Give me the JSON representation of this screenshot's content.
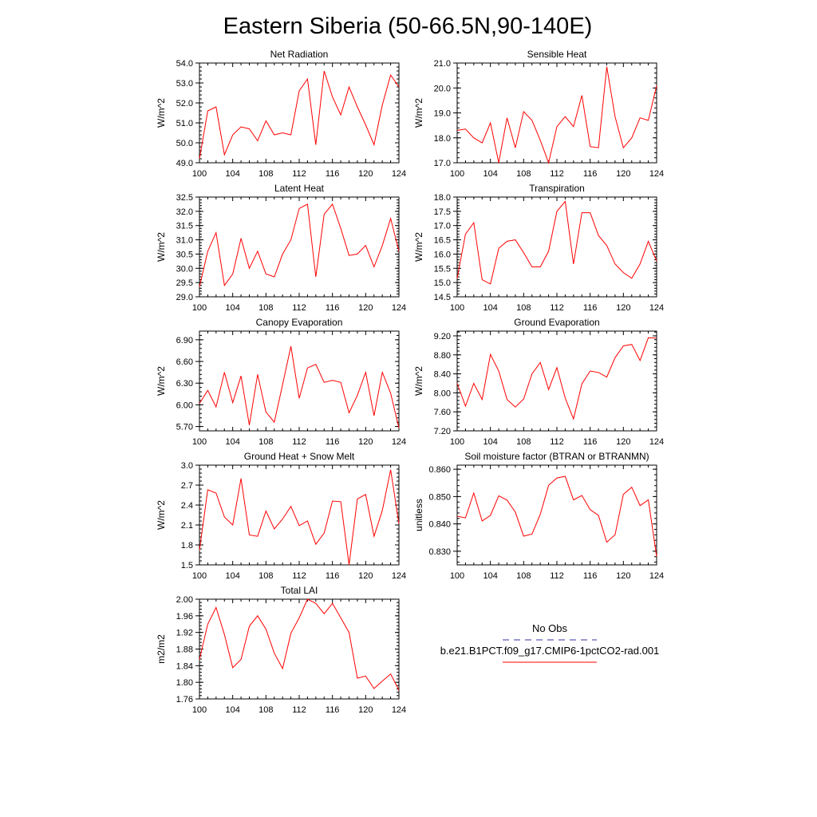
{
  "page": {
    "title": "Eastern Siberia (50-66.5N,90-140E)"
  },
  "legend": {
    "entries": [
      {
        "label": "No Obs",
        "color": "#3333aa",
        "dash": true
      },
      {
        "label": "b.e21.B1PCT.f09_g17.CMIP6-1pctCO2-rad.001",
        "color": "#ff0000",
        "dash": false
      }
    ]
  },
  "chart_data": [
    {
      "type": "line",
      "title": "Net Radiation",
      "ylabel": "W/m^2",
      "xlim": [
        100,
        124
      ],
      "ylim": [
        49,
        54
      ],
      "xticks": [
        100,
        104,
        108,
        112,
        116,
        120,
        124
      ],
      "xticklabels": [
        "100",
        "104",
        "108",
        "112",
        "116",
        "120",
        "124"
      ],
      "yticks": [
        49,
        50,
        51,
        52,
        53,
        54
      ],
      "yticklabels": [
        "49.0",
        "50.0",
        "51.0",
        "52.0",
        "53.0",
        "54.0"
      ],
      "series": [
        {
          "color": "#ff0000",
          "x": [
            100,
            101,
            102,
            103,
            104,
            105,
            106,
            107,
            108,
            109,
            110,
            111,
            112,
            113,
            114,
            115,
            116,
            117,
            118,
            119,
            120,
            121,
            122,
            123,
            124
          ],
          "y": [
            49.2,
            51.6,
            51.8,
            49.4,
            50.4,
            50.8,
            50.7,
            50.1,
            51.1,
            50.4,
            50.5,
            50.4,
            52.6,
            53.2,
            49.9,
            53.6,
            52.3,
            51.4,
            52.8,
            51.8,
            50.9,
            49.9,
            51.9,
            53.4,
            52.8
          ]
        }
      ]
    },
    {
      "type": "line",
      "title": "Sensible Heat",
      "ylabel": "W/m^2",
      "xlim": [
        100,
        124
      ],
      "ylim": [
        17,
        21
      ],
      "xticks": [
        100,
        104,
        108,
        112,
        116,
        120,
        124
      ],
      "xticklabels": [
        "100",
        "104",
        "108",
        "112",
        "116",
        "120",
        "124"
      ],
      "yticks": [
        17,
        18,
        19,
        20,
        21
      ],
      "yticklabels": [
        "17.0",
        "18.0",
        "19.0",
        "20.0",
        "21.0"
      ],
      "series": [
        {
          "color": "#ff0000",
          "x": [
            100,
            101,
            102,
            103,
            104,
            105,
            106,
            107,
            108,
            109,
            110,
            111,
            112,
            113,
            114,
            115,
            116,
            117,
            118,
            119,
            120,
            121,
            122,
            123,
            124
          ],
          "y": [
            18.3,
            18.35,
            18.0,
            17.8,
            18.6,
            17.0,
            18.8,
            17.6,
            19.05,
            18.7,
            17.9,
            17.0,
            18.45,
            18.85,
            18.45,
            19.7,
            17.65,
            17.6,
            20.85,
            18.85,
            17.6,
            18.0,
            18.8,
            18.7,
            20.1
          ]
        }
      ]
    },
    {
      "type": "line",
      "title": "Latent Heat",
      "ylabel": "W/m^2",
      "xlim": [
        100,
        124
      ],
      "ylim": [
        29,
        32.5
      ],
      "xticks": [
        100,
        104,
        108,
        112,
        116,
        120,
        124
      ],
      "xticklabels": [
        "100",
        "104",
        "108",
        "112",
        "116",
        "120",
        "124"
      ],
      "yticks": [
        29,
        29.5,
        30,
        30.5,
        31,
        31.5,
        32,
        32.5
      ],
      "yticklabels": [
        "29.0",
        "29.5",
        "30.0",
        "30.5",
        "31.0",
        "31.5",
        "32.0",
        "32.5"
      ],
      "series": [
        {
          "color": "#ff0000",
          "x": [
            100,
            101,
            102,
            103,
            104,
            105,
            106,
            107,
            108,
            109,
            110,
            111,
            112,
            113,
            114,
            115,
            116,
            117,
            118,
            119,
            120,
            121,
            122,
            123,
            124
          ],
          "y": [
            29.35,
            30.6,
            31.25,
            29.4,
            29.8,
            31.05,
            30.0,
            30.6,
            29.8,
            29.7,
            30.5,
            31.0,
            32.1,
            32.25,
            29.7,
            31.9,
            32.25,
            31.4,
            30.45,
            30.5,
            30.8,
            30.05,
            30.8,
            31.75,
            30.6
          ]
        }
      ]
    },
    {
      "type": "line",
      "title": "Transpiration",
      "ylabel": "W/m^2",
      "xlim": [
        100,
        124
      ],
      "ylim": [
        14.5,
        18
      ],
      "xticks": [
        100,
        104,
        108,
        112,
        116,
        120,
        124
      ],
      "xticklabels": [
        "100",
        "104",
        "108",
        "112",
        "116",
        "120",
        "124"
      ],
      "yticks": [
        14.5,
        15,
        15.5,
        16,
        16.5,
        17,
        17.5,
        18
      ],
      "yticklabels": [
        "14.5",
        "15.0",
        "15.5",
        "16.0",
        "16.5",
        "17.0",
        "17.5",
        "18.0"
      ],
      "series": [
        {
          "color": "#ff0000",
          "x": [
            100,
            101,
            102,
            103,
            104,
            105,
            106,
            107,
            108,
            109,
            110,
            111,
            112,
            113,
            114,
            115,
            116,
            117,
            118,
            119,
            120,
            121,
            122,
            123,
            124
          ],
          "y": [
            15.15,
            16.7,
            17.1,
            15.1,
            14.95,
            16.2,
            16.45,
            16.5,
            16.05,
            15.55,
            15.55,
            16.1,
            17.5,
            17.85,
            15.65,
            17.45,
            17.45,
            16.65,
            16.3,
            15.65,
            15.35,
            15.15,
            15.65,
            16.45,
            15.75
          ]
        }
      ]
    },
    {
      "type": "line",
      "title": "Canopy Evaporation",
      "ylabel": "W/m^2",
      "xlim": [
        100,
        124
      ],
      "ylim": [
        5.64,
        7.02
      ],
      "xticks": [
        100,
        104,
        108,
        112,
        116,
        120,
        124
      ],
      "xticklabels": [
        "100",
        "104",
        "108",
        "112",
        "116",
        "120",
        "124"
      ],
      "yticks": [
        5.7,
        6.0,
        6.3,
        6.6,
        6.9
      ],
      "yticklabels": [
        "5.70",
        "6.00",
        "6.30",
        "6.60",
        "6.90"
      ],
      "series": [
        {
          "color": "#ff0000",
          "x": [
            100,
            101,
            102,
            103,
            104,
            105,
            106,
            107,
            108,
            109,
            110,
            111,
            112,
            113,
            114,
            115,
            116,
            117,
            118,
            119,
            120,
            121,
            122,
            123,
            124
          ],
          "y": [
            6.02,
            6.2,
            5.97,
            6.45,
            6.03,
            6.4,
            5.72,
            6.42,
            5.9,
            5.76,
            6.28,
            6.81,
            6.09,
            6.51,
            6.56,
            6.31,
            6.34,
            6.31,
            5.89,
            6.13,
            6.45,
            5.85,
            6.45,
            6.16,
            5.68
          ]
        }
      ]
    },
    {
      "type": "line",
      "title": "Ground Evaporation",
      "ylabel": "W/m^2",
      "xlim": [
        100,
        124
      ],
      "ylim": [
        7.2,
        9.3
      ],
      "xticks": [
        100,
        104,
        108,
        112,
        116,
        120,
        124
      ],
      "xticklabels": [
        "100",
        "104",
        "108",
        "112",
        "116",
        "120",
        "124"
      ],
      "yticks": [
        7.2,
        7.6,
        8.0,
        8.4,
        8.8,
        9.2
      ],
      "yticklabels": [
        "7.20",
        "7.60",
        "8.00",
        "8.40",
        "8.80",
        "9.20"
      ],
      "series": [
        {
          "color": "#ff0000",
          "x": [
            100,
            101,
            102,
            103,
            104,
            105,
            106,
            107,
            108,
            109,
            110,
            111,
            112,
            113,
            114,
            115,
            116,
            117,
            118,
            119,
            120,
            121,
            122,
            123,
            124
          ],
          "y": [
            8.2,
            7.72,
            8.2,
            7.86,
            8.81,
            8.46,
            7.86,
            7.7,
            7.87,
            8.4,
            8.64,
            8.07,
            8.53,
            7.89,
            7.45,
            8.19,
            8.46,
            8.43,
            8.33,
            8.74,
            8.99,
            9.02,
            8.68,
            9.16,
            9.15
          ]
        }
      ]
    },
    {
      "type": "line",
      "title": "Ground Heat + Snow Melt",
      "ylabel": "W/m^2",
      "xlim": [
        100,
        124
      ],
      "ylim": [
        1.5,
        3.0
      ],
      "xticks": [
        100,
        104,
        108,
        112,
        116,
        120,
        124
      ],
      "xticklabels": [
        "100",
        "104",
        "108",
        "112",
        "116",
        "120",
        "124"
      ],
      "yticks": [
        1.5,
        1.8,
        2.1,
        2.4,
        2.7,
        3.0
      ],
      "yticklabels": [
        "1.5",
        "1.8",
        "2.1",
        "2.4",
        "2.7",
        "3.0"
      ],
      "series": [
        {
          "color": "#ff0000",
          "x": [
            100,
            101,
            102,
            103,
            104,
            105,
            106,
            107,
            108,
            109,
            110,
            111,
            112,
            113,
            114,
            115,
            116,
            117,
            118,
            119,
            120,
            121,
            122,
            123,
            124
          ],
          "y": [
            1.72,
            2.63,
            2.58,
            2.22,
            2.1,
            2.8,
            1.95,
            1.93,
            2.31,
            2.04,
            2.19,
            2.38,
            2.09,
            2.16,
            1.81,
            1.98,
            2.46,
            2.45,
            1.5,
            2.49,
            2.56,
            1.93,
            2.32,
            2.93,
            2.12
          ]
        }
      ]
    },
    {
      "type": "line",
      "title": "Soil moisture factor (BTRAN or BTRANMN)",
      "ylabel": "unitless",
      "xlim": [
        100,
        124
      ],
      "ylim": [
        0.825,
        0.8615
      ],
      "xticks": [
        100,
        104,
        108,
        112,
        116,
        120,
        124
      ],
      "xticklabels": [
        "100",
        "104",
        "108",
        "112",
        "116",
        "120",
        "124"
      ],
      "yticks": [
        0.83,
        0.84,
        0.85,
        0.86
      ],
      "yticklabels": [
        "0.830",
        "0.840",
        "0.850",
        "0.860"
      ],
      "series": [
        {
          "color": "#ff0000",
          "x": [
            100,
            101,
            102,
            103,
            104,
            105,
            106,
            107,
            108,
            109,
            110,
            111,
            112,
            113,
            114,
            115,
            116,
            117,
            118,
            119,
            120,
            121,
            122,
            123,
            124
          ],
          "y": [
            0.8428,
            0.8422,
            0.8513,
            0.8411,
            0.8431,
            0.8503,
            0.8487,
            0.8443,
            0.8355,
            0.8363,
            0.8435,
            0.8541,
            0.8568,
            0.8574,
            0.8488,
            0.8504,
            0.8452,
            0.8431,
            0.8333,
            0.836,
            0.8508,
            0.8534,
            0.8467,
            0.8488,
            0.828
          ]
        }
      ]
    },
    {
      "type": "line",
      "title": "Total LAI",
      "ylabel": "m2/m2",
      "xlim": [
        100,
        124
      ],
      "ylim": [
        1.76,
        2.0
      ],
      "xticks": [
        100,
        104,
        108,
        112,
        116,
        120,
        124
      ],
      "xticklabels": [
        "100",
        "104",
        "108",
        "112",
        "116",
        "120",
        "124"
      ],
      "yticks": [
        1.76,
        1.8,
        1.84,
        1.88,
        1.92,
        1.96,
        2.0
      ],
      "yticklabels": [
        "1.76",
        "1.80",
        "1.84",
        "1.88",
        "1.92",
        "1.96",
        "2.00"
      ],
      "series": [
        {
          "color": "#ff0000",
          "x": [
            100,
            101,
            102,
            103,
            104,
            105,
            106,
            107,
            108,
            109,
            110,
            111,
            112,
            113,
            114,
            115,
            116,
            117,
            118,
            119,
            120,
            121,
            122,
            123,
            124
          ],
          "y": [
            1.855,
            1.94,
            1.98,
            1.915,
            1.835,
            1.855,
            1.935,
            1.96,
            1.928,
            1.87,
            1.833,
            1.918,
            1.955,
            2.0,
            1.99,
            1.965,
            1.99,
            1.955,
            1.92,
            1.81,
            1.815,
            1.785,
            1.803,
            1.82,
            1.781
          ]
        }
      ]
    }
  ]
}
